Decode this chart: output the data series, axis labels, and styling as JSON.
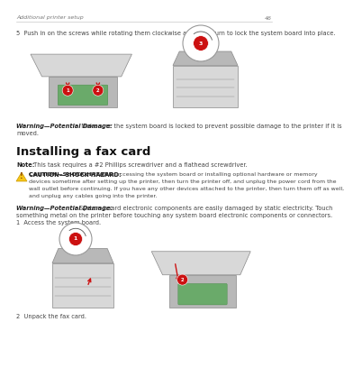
{
  "bg_color": "#ffffff",
  "header_text": "Additional printer setup",
  "header_page": "46",
  "step5_text": "5  Push in on the screws while rotating them clockwise a quarter turn to lock the system board into place.",
  "warning1_label": "Warning—Potential Damage:",
  "warning1_body": "  Make sure the system board is locked to prevent possible damage to the printer if it is moved.",
  "section_title": "Installing a fax card",
  "note_label": "Note:",
  "note_body": " This task requires a #2 Phillips screwdriver and a flathead screwdriver.",
  "caution_label": "CAUTION—SHOCK HAZARD:",
  "caution_body": " If you are accessing the system board or installing optional hardware or memory devices sometime after setting up the printer, then turn the printer off, and unplug the power cord from the wall outlet before continuing. If you have any other devices attached to the printer, then turn them off as well, and unplug any cables going into the printer.",
  "warning2_label": "Warning—Potential Damage:",
  "warning2_body": " System board electronic components are easily damaged by static electricity. Touch something metal on the printer before touching any system board electronic components or connectors.",
  "step1_text": "1  Access the system board.",
  "step2_text": "2  Unpack the fax card.",
  "text_color": "#444444",
  "bold_color": "#222222",
  "header_color": "#777777",
  "line_color": "#bbbbbb",
  "section_color": "#111111",
  "red_color": "#cc1111",
  "green_color": "#6aaa6a",
  "printer_body": "#b8b8b8",
  "printer_dark": "#888888",
  "printer_light": "#d8d8d8",
  "zoom_bg": "#f5f5f5"
}
